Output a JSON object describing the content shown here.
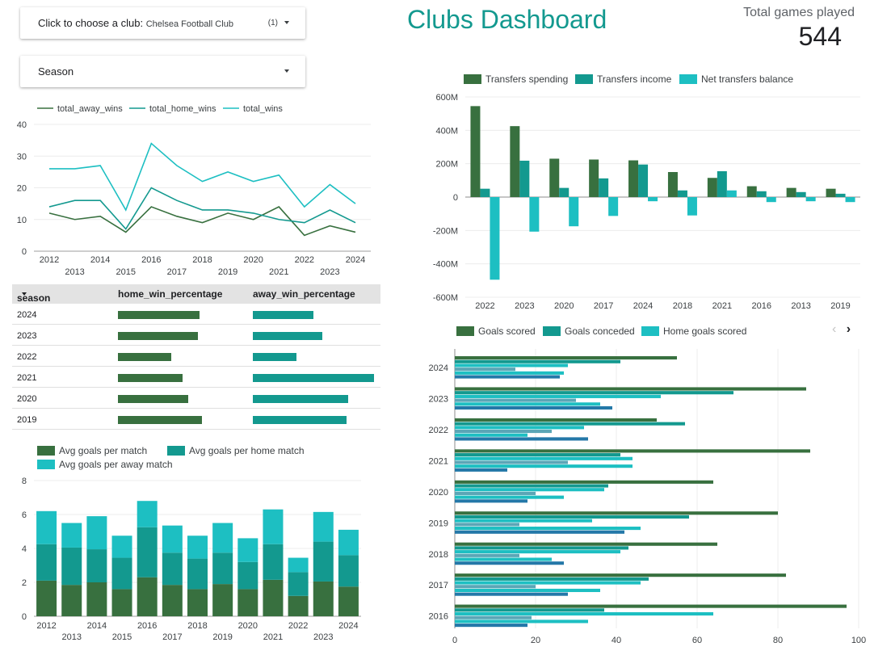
{
  "filters": {
    "club": {
      "label": "Click to choose a club:",
      "value": "Chelsea Football Club",
      "count": "(1)"
    },
    "season": {
      "label": "Season"
    }
  },
  "header": {
    "title": "Clubs Dashboard",
    "kpi_label": "Total games played",
    "kpi_value": "544"
  },
  "colors": {
    "dark_green": "#38703f",
    "teal": "#13998f",
    "light_teal": "#1dbfc2",
    "slate": "#5ba6b6",
    "blue": "#2478a8",
    "title": "#13998f"
  },
  "wins_chart": {
    "type": "line",
    "x": [
      "2012",
      "2013",
      "2014",
      "2015",
      "2016",
      "2017",
      "2018",
      "2019",
      "2020",
      "2021",
      "2022",
      "2023",
      "2024"
    ],
    "series": [
      {
        "name": "total_away_wins",
        "color": "#38703f",
        "values": [
          12,
          10,
          11,
          6,
          14,
          11,
          9,
          12,
          10,
          14,
          5,
          8,
          6
        ]
      },
      {
        "name": "total_home_wins",
        "color": "#13998f",
        "values": [
          14,
          16,
          16,
          7,
          20,
          16,
          13,
          13,
          12,
          10,
          9,
          13,
          9
        ]
      },
      {
        "name": "total_wins",
        "color": "#1dbfc2",
        "values": [
          26,
          26,
          27,
          13,
          34,
          27,
          22,
          25,
          22,
          24,
          14,
          21,
          15
        ]
      }
    ],
    "yticks": [
      "0",
      "10",
      "20",
      "30",
      "40"
    ],
    "ylim": [
      0,
      40
    ]
  },
  "win_table": {
    "headers": {
      "season": "season",
      "home": "home_win_percentage",
      "away": "away_win_percentage"
    },
    "rows": [
      {
        "season": "2024",
        "home": 0.66,
        "away": 0.49
      },
      {
        "season": "2023",
        "home": 0.65,
        "away": 0.56
      },
      {
        "season": "2022",
        "home": 0.43,
        "away": 0.35
      },
      {
        "season": "2021",
        "home": 0.52,
        "away": 0.98
      },
      {
        "season": "2020",
        "home": 0.57,
        "away": 0.77
      },
      {
        "season": "2019",
        "home": 0.68,
        "away": 0.76
      }
    ]
  },
  "goals_avg_chart": {
    "type": "bar",
    "stacked": true,
    "x": [
      "2012",
      "2013",
      "2014",
      "2015",
      "2016",
      "2017",
      "2018",
      "2019",
      "2020",
      "2021",
      "2022",
      "2023",
      "2024"
    ],
    "series": [
      {
        "name": "Avg goals per match",
        "color": "#38703f",
        "values": [
          2.1,
          1.85,
          2.0,
          1.6,
          2.3,
          1.85,
          1.6,
          1.9,
          1.6,
          2.15,
          1.2,
          2.05,
          1.75
        ]
      },
      {
        "name": "Avg goals per home match",
        "color": "#13998f",
        "values": [
          2.15,
          2.2,
          1.95,
          1.85,
          2.95,
          1.9,
          1.8,
          1.85,
          1.6,
          2.1,
          1.4,
          2.35,
          1.85
        ]
      },
      {
        "name": "Avg goals per away match",
        "color": "#1dbfc2",
        "values": [
          1.95,
          1.45,
          1.95,
          1.3,
          1.55,
          1.6,
          1.35,
          1.75,
          1.4,
          2.05,
          0.85,
          1.75,
          1.5
        ]
      }
    ],
    "yticks": [
      "0",
      "2",
      "4",
      "6",
      "8"
    ],
    "ylim": [
      0,
      8
    ]
  },
  "transfers_chart": {
    "type": "bar",
    "x": [
      "2022",
      "2023",
      "2020",
      "2017",
      "2024",
      "2018",
      "2021",
      "2016",
      "2013",
      "2019"
    ],
    "series": [
      {
        "name": "Transfers spending",
        "color": "#38703f",
        "values": [
          545,
          425,
          230,
          225,
          220,
          150,
          115,
          65,
          55,
          50
        ]
      },
      {
        "name": "Transfers income",
        "color": "#13998f",
        "values": [
          50,
          218,
          55,
          112,
          195,
          40,
          155,
          35,
          30,
          20
        ]
      },
      {
        "name": "Net transfers balance",
        "color": "#1dbfc2",
        "values": [
          -495,
          -207,
          -175,
          -113,
          -25,
          -110,
          40,
          -30,
          -25,
          -30
        ]
      }
    ],
    "yticks": [
      "-600M",
      "-400M",
      "-200M",
      "0",
      "200M",
      "400M",
      "600M"
    ],
    "ylim": [
      -600,
      600
    ]
  },
  "goals_chart": {
    "type": "bar",
    "orientation": "horizontal",
    "categories": [
      "2024",
      "2023",
      "2022",
      "2021",
      "2020",
      "2019",
      "2018",
      "2017",
      "2016"
    ],
    "series": [
      {
        "name": "Goals scored",
        "color": "#38703f",
        "values": [
          55,
          87,
          50,
          88,
          64,
          80,
          65,
          82,
          97
        ]
      },
      {
        "name": "Goals conceded",
        "color": "#13998f",
        "values": [
          41,
          69,
          57,
          41,
          38,
          58,
          43,
          48,
          37
        ]
      },
      {
        "name": "Home goals scored",
        "color": "#1dbfc2",
        "values": [
          28,
          51,
          32,
          44,
          37,
          34,
          41,
          46,
          64
        ]
      },
      {
        "color": "#5ba6b6",
        "values": [
          15,
          30,
          24,
          28,
          20,
          16,
          16,
          20,
          19
        ]
      },
      {
        "color": "#1dbfc2",
        "values": [
          27,
          36,
          18,
          44,
          27,
          46,
          24,
          36,
          33
        ]
      },
      {
        "color": "#2478a8",
        "values": [
          26,
          39,
          33,
          13,
          18,
          42,
          27,
          28,
          18
        ]
      }
    ],
    "xticks": [
      "0",
      "20",
      "40",
      "60",
      "80",
      "100"
    ],
    "xlim": [
      0,
      100
    ]
  },
  "pager": {
    "prev": "‹",
    "next": "›"
  }
}
